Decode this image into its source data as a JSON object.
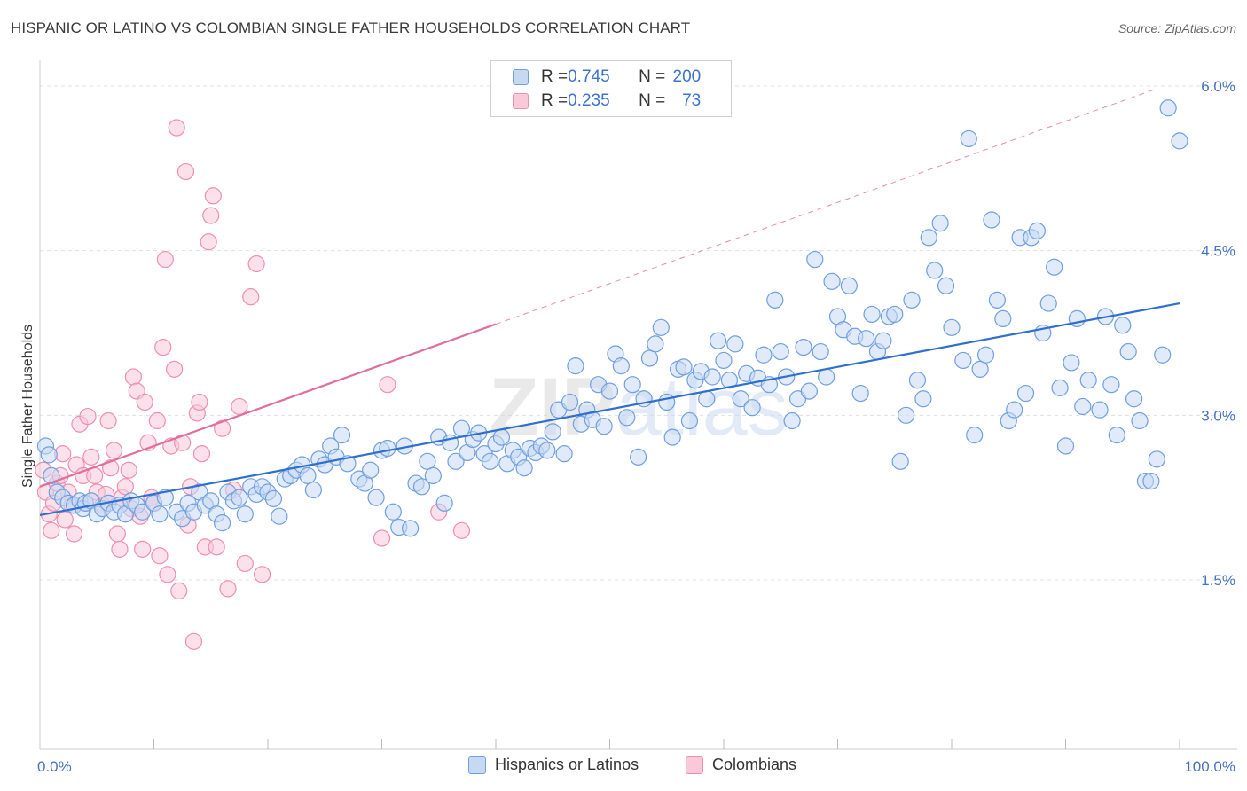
{
  "title": "HISPANIC OR LATINO VS COLOMBIAN SINGLE FATHER HOUSEHOLDS CORRELATION CHART",
  "source": "Source: ZipAtlas.com",
  "watermark": "ZIPatlas",
  "legend": {
    "rows": [
      {
        "r_label": "R = ",
        "r_value": "0.745",
        "n_label": "N = ",
        "n_value": "200"
      },
      {
        "r_label": "R = ",
        "r_value": "0.235",
        "n_label": "N = ",
        "n_value": "73"
      }
    ]
  },
  "bottom_legend": {
    "blue": "Hispanics or Latinos",
    "pink": "Colombians"
  },
  "colors": {
    "blue_fill": "#c7d9f2",
    "blue_stroke": "#6f9fe0",
    "blue_line": "#2f6fd0",
    "pink_fill": "#f9c9d9",
    "pink_stroke": "#ee8fb0",
    "pink_line": "#e0709a",
    "axis_label": "#4472c4",
    "grid": "#e0e0e0"
  },
  "chart_data": {
    "type": "scatter",
    "title": "HISPANIC OR LATINO VS COLOMBIAN SINGLE FATHER HOUSEHOLDS CORRELATION CHART",
    "xlabel": "",
    "ylabel": "Single Father Households",
    "xlim": [
      0,
      100
    ],
    "ylim": [
      0,
      6.2
    ],
    "x_tick_labels": [
      "0.0%",
      "100.0%"
    ],
    "y_ticks": [
      1.5,
      3.0,
      4.5,
      6.0
    ],
    "y_tick_labels": [
      "1.5%",
      "3.0%",
      "4.5%",
      "6.0%"
    ],
    "grid": true,
    "legend_position": "top-center",
    "series": [
      {
        "name": "Hispanics or Latinos",
        "R": 0.745,
        "N": 200,
        "trend": {
          "x": [
            0,
            100
          ],
          "y": [
            2.09,
            4.02
          ]
        },
        "points": [
          [
            0.5,
            2.72
          ],
          [
            0.8,
            2.64
          ],
          [
            1,
            2.45
          ],
          [
            1.5,
            2.3
          ],
          [
            2,
            2.25
          ],
          [
            2.5,
            2.2
          ],
          [
            3,
            2.18
          ],
          [
            3.5,
            2.22
          ],
          [
            3.8,
            2.15
          ],
          [
            4,
            2.2
          ],
          [
            4.5,
            2.22
          ],
          [
            5,
            2.1
          ],
          [
            5.5,
            2.15
          ],
          [
            6,
            2.2
          ],
          [
            6.5,
            2.12
          ],
          [
            7,
            2.18
          ],
          [
            7.5,
            2.1
          ],
          [
            8,
            2.22
          ],
          [
            8.5,
            2.18
          ],
          [
            9,
            2.12
          ],
          [
            10,
            2.2
          ],
          [
            10.5,
            2.1
          ],
          [
            11,
            2.25
          ],
          [
            12,
            2.12
          ],
          [
            12.5,
            2.06
          ],
          [
            13,
            2.2
          ],
          [
            13.5,
            2.12
          ],
          [
            14,
            2.3
          ],
          [
            14.5,
            2.18
          ],
          [
            15,
            2.22
          ],
          [
            15.5,
            2.1
          ],
          [
            16,
            2.02
          ],
          [
            16.5,
            2.3
          ],
          [
            17,
            2.22
          ],
          [
            17.5,
            2.25
          ],
          [
            18,
            2.1
          ],
          [
            18.5,
            2.35
          ],
          [
            19,
            2.28
          ],
          [
            19.5,
            2.35
          ],
          [
            20,
            2.3
          ],
          [
            20.5,
            2.24
          ],
          [
            21,
            2.08
          ],
          [
            21.5,
            2.42
          ],
          [
            22,
            2.45
          ],
          [
            22.5,
            2.5
          ],
          [
            23,
            2.55
          ],
          [
            23.5,
            2.45
          ],
          [
            24,
            2.32
          ],
          [
            24.5,
            2.6
          ],
          [
            25,
            2.55
          ],
          [
            25.5,
            2.72
          ],
          [
            26,
            2.62
          ],
          [
            26.5,
            2.82
          ],
          [
            27,
            2.56
          ],
          [
            28,
            2.42
          ],
          [
            28.5,
            2.38
          ],
          [
            29,
            2.5
          ],
          [
            29.5,
            2.25
          ],
          [
            30,
            2.68
          ],
          [
            30.5,
            2.7
          ],
          [
            31,
            2.12
          ],
          [
            31.5,
            1.98
          ],
          [
            32,
            2.72
          ],
          [
            32.5,
            1.97
          ],
          [
            33,
            2.38
          ],
          [
            33.5,
            2.35
          ],
          [
            34,
            2.58
          ],
          [
            34.5,
            2.45
          ],
          [
            35,
            2.8
          ],
          [
            35.5,
            2.2
          ],
          [
            36,
            2.75
          ],
          [
            36.5,
            2.58
          ],
          [
            37,
            2.88
          ],
          [
            37.5,
            2.66
          ],
          [
            38,
            2.78
          ],
          [
            38.5,
            2.84
          ],
          [
            39,
            2.65
          ],
          [
            39.5,
            2.58
          ],
          [
            40,
            2.74
          ],
          [
            40.5,
            2.8
          ],
          [
            41,
            2.56
          ],
          [
            41.5,
            2.68
          ],
          [
            42,
            2.62
          ],
          [
            42.5,
            2.52
          ],
          [
            43,
            2.7
          ],
          [
            43.5,
            2.66
          ],
          [
            44,
            2.72
          ],
          [
            44.5,
            2.68
          ],
          [
            45,
            2.85
          ],
          [
            45.5,
            3.05
          ],
          [
            46,
            2.65
          ],
          [
            46.5,
            3.12
          ],
          [
            47,
            3.45
          ],
          [
            47.5,
            2.92
          ],
          [
            48,
            3.05
          ],
          [
            48.5,
            2.96
          ],
          [
            49,
            3.28
          ],
          [
            49.5,
            2.9
          ],
          [
            50,
            3.22
          ],
          [
            50.5,
            3.56
          ],
          [
            51,
            3.45
          ],
          [
            51.5,
            2.98
          ],
          [
            52,
            3.28
          ],
          [
            52.5,
            2.62
          ],
          [
            53,
            3.15
          ],
          [
            53.5,
            3.52
          ],
          [
            54,
            3.65
          ],
          [
            54.5,
            3.8
          ],
          [
            55,
            3.12
          ],
          [
            55.5,
            2.8
          ],
          [
            56,
            3.42
          ],
          [
            56.5,
            3.44
          ],
          [
            57,
            2.95
          ],
          [
            57.5,
            3.32
          ],
          [
            58,
            3.4
          ],
          [
            58.5,
            3.15
          ],
          [
            59,
            3.35
          ],
          [
            59.5,
            3.68
          ],
          [
            60,
            3.5
          ],
          [
            60.5,
            3.32
          ],
          [
            61,
            3.65
          ],
          [
            61.5,
            3.15
          ],
          [
            62,
            3.38
          ],
          [
            62.5,
            3.07
          ],
          [
            63,
            3.34
          ],
          [
            63.5,
            3.55
          ],
          [
            64,
            3.28
          ],
          [
            64.5,
            4.05
          ],
          [
            65,
            3.58
          ],
          [
            65.5,
            3.35
          ],
          [
            66,
            2.95
          ],
          [
            66.5,
            3.15
          ],
          [
            67,
            3.62
          ],
          [
            67.5,
            3.22
          ],
          [
            68,
            4.42
          ],
          [
            68.5,
            3.58
          ],
          [
            69,
            3.35
          ],
          [
            69.5,
            4.22
          ],
          [
            70,
            3.9
          ],
          [
            70.5,
            3.78
          ],
          [
            71,
            4.18
          ],
          [
            71.5,
            3.72
          ],
          [
            72,
            3.2
          ],
          [
            72.5,
            3.7
          ],
          [
            73,
            3.92
          ],
          [
            73.5,
            3.58
          ],
          [
            74,
            3.68
          ],
          [
            74.5,
            3.9
          ],
          [
            75,
            3.92
          ],
          [
            75.5,
            2.58
          ],
          [
            76,
            3.0
          ],
          [
            76.5,
            4.05
          ],
          [
            77,
            3.32
          ],
          [
            77.5,
            3.15
          ],
          [
            78,
            4.62
          ],
          [
            78.5,
            4.32
          ],
          [
            79,
            4.75
          ],
          [
            79.5,
            4.18
          ],
          [
            80,
            3.8
          ],
          [
            81,
            3.5
          ],
          [
            81.5,
            5.52
          ],
          [
            82,
            2.82
          ],
          [
            82.5,
            3.42
          ],
          [
            83,
            3.55
          ],
          [
            83.5,
            4.78
          ],
          [
            84,
            4.05
          ],
          [
            84.5,
            3.88
          ],
          [
            85,
            2.95
          ],
          [
            85.5,
            3.05
          ],
          [
            86,
            4.62
          ],
          [
            86.5,
            3.2
          ],
          [
            87,
            4.62
          ],
          [
            87.5,
            4.68
          ],
          [
            88,
            3.75
          ],
          [
            88.5,
            4.02
          ],
          [
            89,
            4.35
          ],
          [
            89.5,
            3.25
          ],
          [
            90,
            2.72
          ],
          [
            90.5,
            3.48
          ],
          [
            91,
            3.88
          ],
          [
            91.5,
            3.08
          ],
          [
            92,
            3.32
          ],
          [
            93,
            3.05
          ],
          [
            93.5,
            3.9
          ],
          [
            94,
            3.28
          ],
          [
            94.5,
            2.82
          ],
          [
            95,
            3.82
          ],
          [
            95.5,
            3.58
          ],
          [
            96,
            3.15
          ],
          [
            96.5,
            2.95
          ],
          [
            97,
            2.4
          ],
          [
            97.5,
            2.4
          ],
          [
            98,
            2.6
          ],
          [
            98.5,
            3.55
          ],
          [
            99,
            5.8
          ],
          [
            100,
            5.5
          ]
        ]
      },
      {
        "name": "Colombians",
        "R": 0.235,
        "N": 73,
        "trend": {
          "x": [
            0,
            40
          ],
          "y": [
            2.35,
            3.83
          ]
        },
        "points": [
          [
            0.3,
            2.5
          ],
          [
            0.5,
            2.3
          ],
          [
            0.8,
            2.1
          ],
          [
            1,
            1.95
          ],
          [
            1.2,
            2.2
          ],
          [
            1.5,
            2.38
          ],
          [
            1.8,
            2.45
          ],
          [
            2,
            2.65
          ],
          [
            2.2,
            2.05
          ],
          [
            2.5,
            2.3
          ],
          [
            2.8,
            2.18
          ],
          [
            3,
            1.92
          ],
          [
            3.2,
            2.55
          ],
          [
            3.5,
            2.92
          ],
          [
            3.8,
            2.45
          ],
          [
            4,
            2.2
          ],
          [
            4.2,
            2.99
          ],
          [
            4.5,
            2.62
          ],
          [
            4.8,
            2.45
          ],
          [
            5,
            2.3
          ],
          [
            5.5,
            2.18
          ],
          [
            5.8,
            2.28
          ],
          [
            6,
            2.95
          ],
          [
            6.2,
            2.52
          ],
          [
            6.5,
            2.68
          ],
          [
            6.8,
            1.92
          ],
          [
            7,
            1.78
          ],
          [
            7.2,
            2.25
          ],
          [
            7.5,
            2.35
          ],
          [
            7.8,
            2.5
          ],
          [
            8,
            2.15
          ],
          [
            8.2,
            3.35
          ],
          [
            8.5,
            3.22
          ],
          [
            8.8,
            2.08
          ],
          [
            9,
            1.78
          ],
          [
            9.2,
            3.12
          ],
          [
            9.5,
            2.75
          ],
          [
            9.8,
            2.25
          ],
          [
            10,
            2.2
          ],
          [
            10.3,
            2.95
          ],
          [
            10.5,
            1.72
          ],
          [
            10.8,
            3.62
          ],
          [
            11,
            4.42
          ],
          [
            11.2,
            1.55
          ],
          [
            11.5,
            2.72
          ],
          [
            11.8,
            3.42
          ],
          [
            12,
            5.62
          ],
          [
            12.2,
            1.4
          ],
          [
            12.5,
            2.75
          ],
          [
            12.8,
            5.22
          ],
          [
            13,
            2.0
          ],
          [
            13.2,
            2.35
          ],
          [
            13.5,
            0.94
          ],
          [
            13.8,
            3.02
          ],
          [
            14,
            3.12
          ],
          [
            14.2,
            2.65
          ],
          [
            14.5,
            1.8
          ],
          [
            14.8,
            4.58
          ],
          [
            15,
            4.82
          ],
          [
            15.2,
            5.0
          ],
          [
            15.5,
            1.8
          ],
          [
            16,
            2.88
          ],
          [
            16.5,
            1.42
          ],
          [
            17,
            2.32
          ],
          [
            17.5,
            3.08
          ],
          [
            18,
            1.65
          ],
          [
            18.5,
            4.08
          ],
          [
            19,
            4.38
          ],
          [
            19.5,
            1.55
          ],
          [
            30,
            1.88
          ],
          [
            30.5,
            3.28
          ],
          [
            35,
            2.12
          ],
          [
            37,
            1.95
          ]
        ]
      }
    ]
  }
}
